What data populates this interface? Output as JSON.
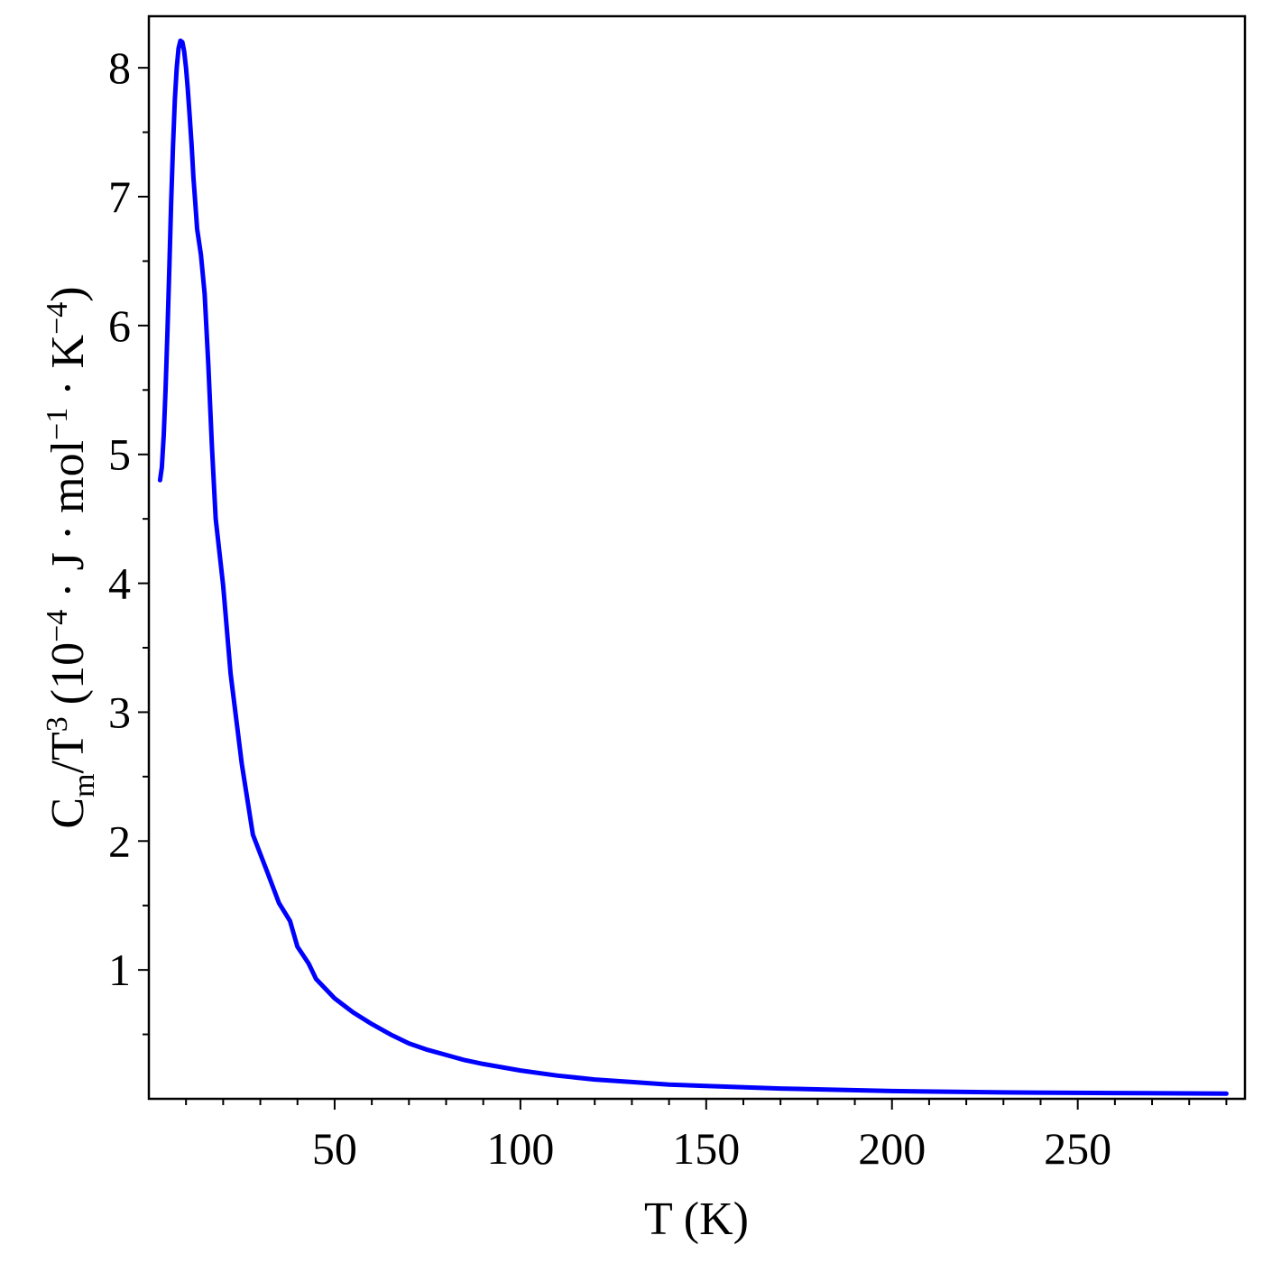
{
  "chart_data": {
    "type": "line",
    "title": "",
    "xlabel": "T (K)",
    "ylabel": {
      "c": "C",
      "m": "m",
      "slash_t": "/T",
      "three": "3",
      "open_paren": " (10",
      "neg4a": "−4",
      "mid": " · J · mol",
      "neg1": "−1",
      "kpart": " · K",
      "neg4b": "−4",
      "close_paren": ")"
    },
    "xlim": [
      0,
      295
    ],
    "ylim": [
      0,
      8.4
    ],
    "x_ticks": [
      50,
      100,
      150,
      200,
      250
    ],
    "y_ticks": [
      1,
      2,
      3,
      4,
      5,
      6,
      7,
      8
    ],
    "grid": false,
    "legend": "none",
    "line_color": "#0000ff",
    "series": [
      {
        "x": [
          3,
          3.5,
          4,
          4.5,
          5,
          5.5,
          6,
          6.5,
          7,
          7.5,
          8,
          8.5,
          9,
          9.5,
          10,
          10.5,
          11,
          11.5,
          12,
          12.5,
          13,
          14,
          15,
          16,
          17,
          18,
          20,
          22,
          25,
          28,
          32,
          35,
          38,
          40,
          43,
          45,
          50,
          55,
          60,
          65,
          70,
          75,
          80,
          85,
          90,
          100,
          110,
          120,
          130,
          140,
          150,
          170,
          200,
          230,
          260,
          290
        ],
        "y": [
          4.8,
          4.9,
          5.15,
          5.5,
          5.95,
          6.45,
          6.95,
          7.4,
          7.75,
          8.0,
          8.15,
          8.21,
          8.2,
          8.13,
          8.0,
          7.83,
          7.62,
          7.4,
          7.15,
          6.95,
          6.75,
          6.55,
          6.25,
          5.7,
          5.05,
          4.5,
          3.98,
          3.3,
          2.6,
          2.05,
          1.75,
          1.52,
          1.38,
          1.18,
          1.05,
          0.93,
          0.78,
          0.67,
          0.58,
          0.5,
          0.43,
          0.38,
          0.34,
          0.3,
          0.27,
          0.22,
          0.18,
          0.15,
          0.13,
          0.11,
          0.1,
          0.08,
          0.06,
          0.05,
          0.045,
          0.04
        ]
      }
    ]
  }
}
